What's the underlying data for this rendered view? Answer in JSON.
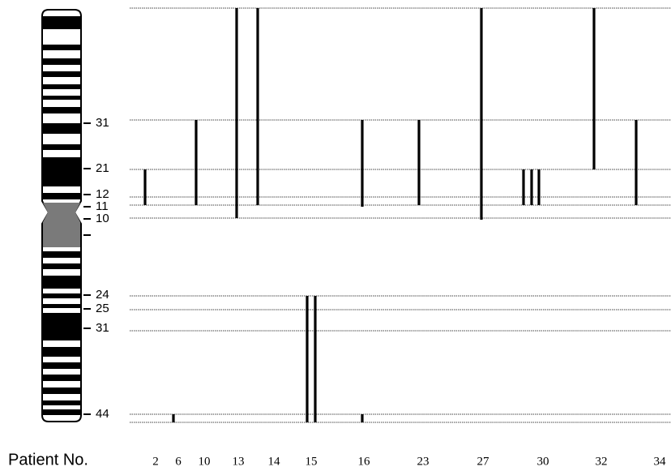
{
  "figure": {
    "band_labels": [
      "31",
      "21",
      "12",
      "11",
      "10",
      "24",
      "25",
      "31",
      "44"
    ],
    "x_title": "Patient No.",
    "patients": [
      "2",
      "6",
      "10",
      "13",
      "14",
      "15",
      "16",
      "23",
      "27",
      "30",
      "32",
      "34"
    ]
  }
}
